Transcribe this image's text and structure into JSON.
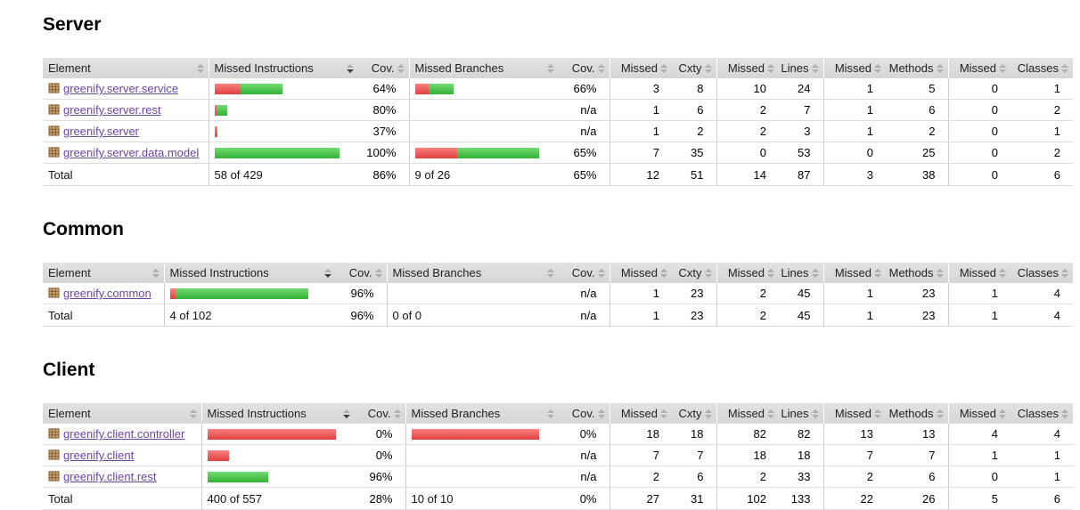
{
  "report": {
    "columns": {
      "element": "Element",
      "missed_instructions": "Missed Instructions",
      "cov": "Cov.",
      "missed_branches": "Missed Branches",
      "missed": "Missed",
      "cxty": "Cxty",
      "lines": "Lines",
      "methods": "Methods",
      "classes": "Classes"
    },
    "sorted_column": "missed_instructions",
    "sort_direction": "desc",
    "colors": {
      "bar_red": "#e04040",
      "bar_green": "#33b233",
      "link": "#6b45a8",
      "header_bg": "#dcdcdc"
    },
    "sections": [
      {
        "title": "Server",
        "rows": [
          {
            "name": "greenify.server.service",
            "instr_bar": [
              29,
              47
            ],
            "instr_cov": "64%",
            "branch_bar": [
              15,
              28
            ],
            "branch_cov": "66%",
            "nums": [
              "3",
              "8",
              "10",
              "24",
              "1",
              "5",
              "0",
              "1"
            ]
          },
          {
            "name": "greenify.server.rest",
            "instr_bar": [
              2,
              12
            ],
            "instr_cov": "80%",
            "branch_bar": [
              0,
              0
            ],
            "branch_cov": "n/a",
            "nums": [
              "1",
              "6",
              "2",
              "7",
              "1",
              "6",
              "0",
              "2"
            ]
          },
          {
            "name": "greenify.server",
            "instr_bar": [
              2,
              1
            ],
            "instr_cov": "37%",
            "branch_bar": [
              0,
              0
            ],
            "branch_cov": "n/a",
            "nums": [
              "1",
              "2",
              "2",
              "3",
              "1",
              "2",
              "0",
              "1"
            ]
          },
          {
            "name": "greenify.server.data.model",
            "instr_bar": [
              0,
              140
            ],
            "instr_cov": "100%",
            "branch_bar": [
              47,
              92
            ],
            "branch_cov": "65%",
            "nums": [
              "7",
              "35",
              "0",
              "53",
              "0",
              "25",
              "0",
              "2"
            ]
          }
        ],
        "total": {
          "label": "Total",
          "instr": "58 of 429",
          "instr_cov": "86%",
          "branch": "9 of 26",
          "branch_cov": "65%",
          "nums": [
            "12",
            "51",
            "14",
            "87",
            "3",
            "38",
            "0",
            "6"
          ]
        }
      },
      {
        "title": "Common",
        "rows": [
          {
            "name": "greenify.common",
            "instr_bar": [
              6,
              149
            ],
            "instr_cov": "96%",
            "branch_bar": [
              0,
              0
            ],
            "branch_cov": "n/a",
            "nums": [
              "1",
              "23",
              "2",
              "45",
              "1",
              "23",
              "1",
              "4"
            ]
          }
        ],
        "total": {
          "label": "Total",
          "instr": "4 of 102",
          "instr_cov": "96%",
          "branch": "0 of 0",
          "branch_cov": "n/a",
          "nums": [
            "1",
            "23",
            "2",
            "45",
            "1",
            "23",
            "1",
            "4"
          ]
        }
      },
      {
        "title": "Client",
        "rows": [
          {
            "name": "greenify.client.controller",
            "instr_bar": [
              144,
              0
            ],
            "instr_cov": "0%",
            "branch_bar": [
              143,
              0
            ],
            "branch_cov": "0%",
            "nums": [
              "18",
              "18",
              "82",
              "82",
              "13",
              "13",
              "4",
              "4"
            ]
          },
          {
            "name": "greenify.client",
            "instr_bar": [
              24,
              0
            ],
            "instr_cov": "0%",
            "branch_bar": [
              0,
              0
            ],
            "branch_cov": "n/a",
            "nums": [
              "7",
              "7",
              "18",
              "18",
              "7",
              "7",
              "1",
              "1"
            ]
          },
          {
            "name": "greenify.client.rest",
            "instr_bar": [
              0,
              68
            ],
            "instr_cov": "96%",
            "branch_bar": [
              0,
              0
            ],
            "branch_cov": "n/a",
            "nums": [
              "2",
              "6",
              "2",
              "33",
              "2",
              "6",
              "0",
              "1"
            ]
          }
        ],
        "total": {
          "label": "Total",
          "instr": "400 of 557",
          "instr_cov": "28%",
          "branch": "10 of 10",
          "branch_cov": "0%",
          "nums": [
            "27",
            "31",
            "102",
            "133",
            "22",
            "26",
            "5",
            "6"
          ]
        }
      }
    ]
  }
}
